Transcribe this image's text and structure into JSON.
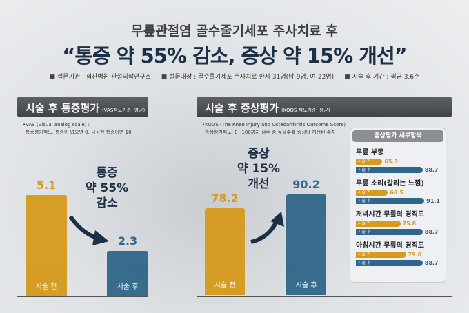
{
  "title": {
    "line1": "무릎관절염 골수줄기세포 주사치료 후",
    "line2": "“통증 약 55% 감소, 증상 약 15% 개선”"
  },
  "info": [
    "설문기관 : 힘찬병원 관절의학연구소",
    "설문대상 : 골수줄기세포 주사치료 환자 31명(남-9명, 여-22명)",
    "시술 후 기간 : 평균 3.6주"
  ],
  "colors": {
    "before": "#d69a1c",
    "after": "#2f6689",
    "title": "#1d2f45"
  },
  "chart_data": [
    {
      "type": "bar",
      "title": "시술 후 통증평가",
      "subtitle": "(VAS척도기준, 평균)",
      "note": [
        "•VAS (Visual analog scale) :",
        "통증평가척도, 통증이 없으면 0, 극심한 통증이면 10"
      ],
      "categories": [
        "시술 전",
        "시술 후"
      ],
      "values": [
        5.1,
        2.3
      ],
      "labels": [
        "5.1",
        "2.3"
      ],
      "annotation": [
        "통증",
        "약 55%",
        "감소"
      ]
    },
    {
      "type": "bar",
      "title": "시술 후 증상평가",
      "subtitle": "(KOOS 척도기준, 평균)",
      "note": [
        "•KOOS (The Knee Injury and Osteoarthritis Outcome Score) :",
        "증상평가척도, 0~100까지 점수 중 높을수록 증상이 개선된 수치"
      ],
      "categories": [
        "시술 전",
        "시술 후"
      ],
      "values": [
        78.2,
        90.2
      ],
      "labels": [
        "78.2",
        "90.2"
      ],
      "annotation": [
        "증상",
        "약 15%",
        "개선"
      ]
    },
    {
      "type": "bar",
      "orientation": "horizontal",
      "title": "증상평가 세부항목",
      "series_names": [
        "시술 전",
        "시술 후"
      ],
      "items": [
        {
          "name": "무릎 부종",
          "before": 65.3,
          "after": 88.7,
          "before_label": "65.3",
          "after_label": "88.7"
        },
        {
          "name": "무릎 소리(갈리는 느낌)",
          "before": 68.5,
          "after": 91.1,
          "before_label": "68.5",
          "after_label": "91.1"
        },
        {
          "name": "저녁시간 무릎의 경직도",
          "before": 75.8,
          "after": 88.7,
          "before_label": "75.8",
          "after_label": "88.7"
        },
        {
          "name": "아침시간 무릎의 경직도",
          "before": 79.0,
          "after": 88.7,
          "before_label": "79.0",
          "after_label": "88.7"
        }
      ]
    }
  ]
}
